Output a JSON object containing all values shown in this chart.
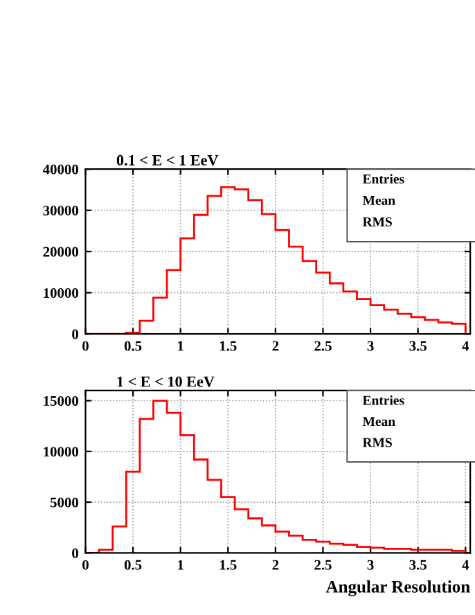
{
  "chart_data": [
    {
      "type": "histogram",
      "title": "0.1 < E < 1 EeV",
      "color": "#ff0000",
      "bins": [
        0,
        0.1429,
        0.2857,
        0.4286,
        0.5714,
        0.7143,
        0.8571,
        1,
        1.1429,
        1.2857,
        1.4286,
        1.5714,
        1.7143,
        1.8571,
        2,
        2.1429,
        2.2857,
        2.4286,
        2.5714,
        2.7143,
        2.8571,
        3,
        3.1429,
        3.2857,
        3.4286,
        3.5714,
        3.7143,
        3.8571,
        4
      ],
      "values": [
        0,
        0,
        0,
        300,
        3200,
        8800,
        15500,
        23200,
        28900,
        33500,
        35600,
        35100,
        32500,
        29100,
        25200,
        21200,
        17700,
        14900,
        12300,
        10300,
        8500,
        7000,
        5900,
        4900,
        4100,
        3400,
        2800,
        2500
      ],
      "xlim": [
        0,
        4.05
      ],
      "xticks": [
        0,
        0.5,
        1,
        1.5,
        2,
        2.5,
        3,
        3.5,
        4
      ],
      "ylim": [
        0,
        40000
      ],
      "yticks": [
        0,
        10000,
        20000,
        30000,
        40000
      ],
      "grid": true,
      "annotations": [
        "Entries",
        "Mean",
        "RMS"
      ]
    },
    {
      "type": "histogram",
      "title": "1 < E < 10 EeV",
      "xlabel": "Angular Resolution",
      "color": "#ff0000",
      "bins": [
        0,
        0.1429,
        0.2857,
        0.4286,
        0.5714,
        0.7143,
        0.8571,
        1,
        1.1429,
        1.2857,
        1.4286,
        1.5714,
        1.7143,
        1.8571,
        2,
        2.1429,
        2.2857,
        2.4286,
        2.5714,
        2.7143,
        2.8571,
        3,
        3.1429,
        3.2857,
        3.4286,
        3.5714,
        3.7143,
        3.8571,
        4
      ],
      "values": [
        0,
        300,
        2600,
        8000,
        13200,
        15000,
        13800,
        11600,
        9200,
        7200,
        5500,
        4300,
        3400,
        2700,
        2100,
        1700,
        1300,
        1100,
        900,
        800,
        600,
        500,
        400,
        400,
        300,
        300,
        300,
        200
      ],
      "xlim": [
        0,
        4.05
      ],
      "xticks": [
        0,
        0.5,
        1,
        1.5,
        2,
        2.5,
        3,
        3.5,
        4
      ],
      "ylim": [
        0,
        16000
      ],
      "yticks": [
        0,
        5000,
        10000,
        15000
      ],
      "grid": true,
      "annotations": [
        "Entries",
        "Mean",
        "RMS"
      ]
    }
  ]
}
